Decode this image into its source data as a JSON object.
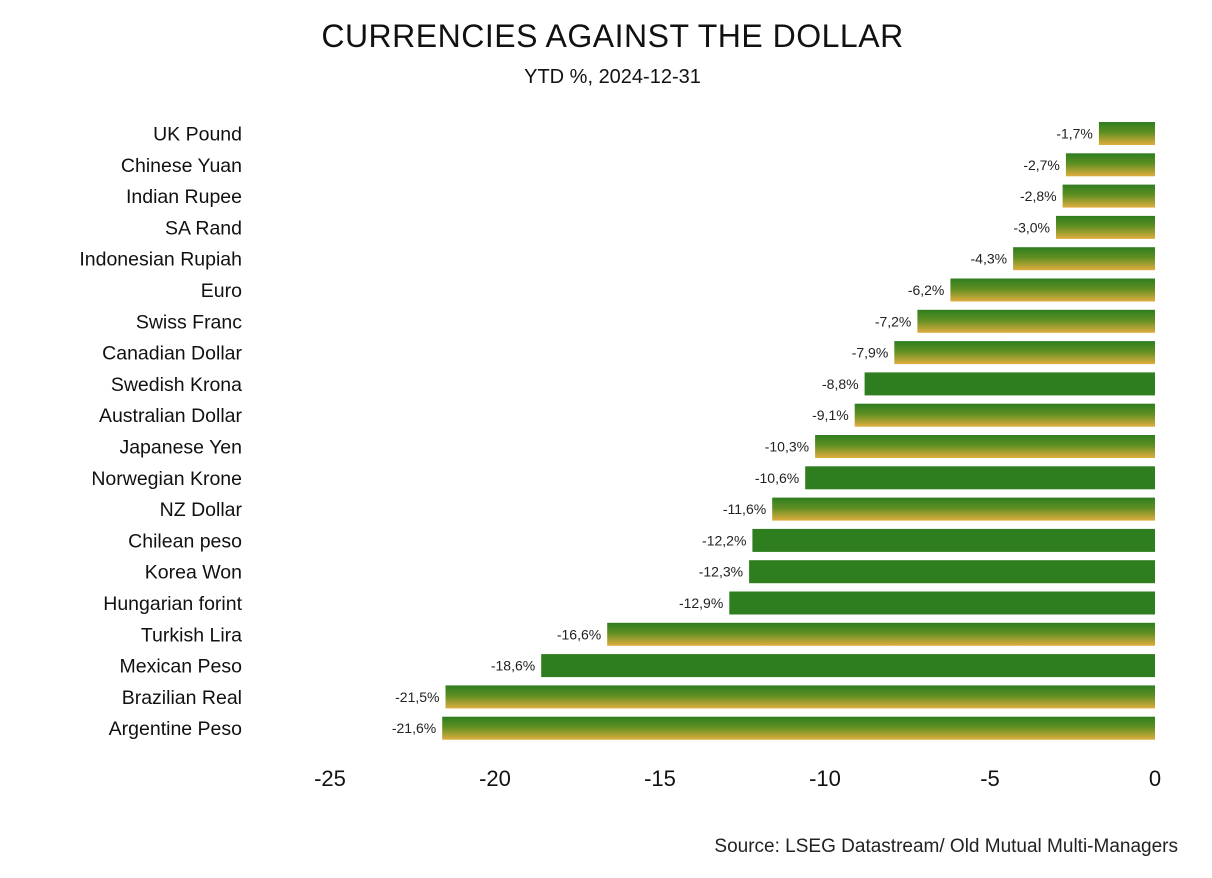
{
  "chart_data": {
    "type": "bar",
    "orientation": "horizontal",
    "title": "CURRENCIES AGAINST THE DOLLAR",
    "subtitle": "YTD %, 2024-12-31",
    "source": "Source: LSEG Datastream/ Old Mutual Multi-Managers",
    "xlim": [
      -25,
      0
    ],
    "xticks": [
      -25,
      -20,
      -15,
      -10,
      -5,
      0
    ],
    "grid": false,
    "legend": "none",
    "colors": {
      "green": "#2e7d1f",
      "gold": "#d9a83a"
    },
    "categories": [
      "UK Pound",
      "Chinese Yuan",
      "Indian Rupee",
      "SA Rand",
      "Indonesian Rupiah",
      "Euro",
      "Swiss Franc",
      "Canadian Dollar",
      "Swedish Krona",
      "Australian Dollar",
      "Japanese Yen",
      "Norwegian Krone",
      "NZ Dollar",
      "Chilean peso",
      "Korea Won",
      "Hungarian forint",
      "Turkish Lira",
      "Mexican Peso",
      "Brazilian Real",
      "Argentine Peso"
    ],
    "values": [
      -1.7,
      -2.7,
      -2.8,
      -3.0,
      -4.3,
      -6.2,
      -7.2,
      -7.9,
      -8.8,
      -9.1,
      -10.3,
      -10.6,
      -11.6,
      -12.2,
      -12.3,
      -12.9,
      -16.6,
      -18.6,
      -21.5,
      -21.6
    ],
    "value_labels": [
      "-1,7%",
      "-2,7%",
      "-2,8%",
      "-3,0%",
      "-4,3%",
      "-6,2%",
      "-7,2%",
      "-7,9%",
      "-8,8%",
      "-9,1%",
      "-10,3%",
      "-10,6%",
      "-11,6%",
      "-12,2%",
      "-12,3%",
      "-12,9%",
      "-16,6%",
      "-18,6%",
      "-21,5%",
      "-21,6%"
    ],
    "bar_styles": [
      "gradient",
      "gradient",
      "gradient",
      "gradient",
      "gradient",
      "gradient",
      "gradient",
      "gradient",
      "solid",
      "gradient",
      "gradient",
      "solid",
      "gradient",
      "solid",
      "solid",
      "solid",
      "gradient",
      "solid",
      "gradient",
      "gradient"
    ]
  }
}
